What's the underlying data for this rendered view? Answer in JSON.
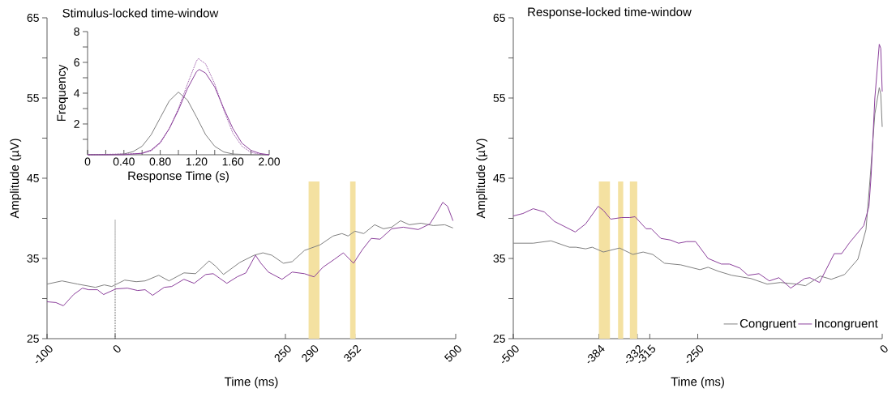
{
  "chart_data": [
    {
      "type": "line",
      "title": "Stimulus-locked time-window",
      "xlabel": "Time (ms)",
      "ylabel": "Amplitude  (µV)",
      "xlim": [
        -100,
        500
      ],
      "ylim": [
        25,
        65
      ],
      "xticks": [
        -100,
        0,
        250,
        290,
        352,
        500
      ],
      "yticks": [
        25,
        {
          "value": 30,
          "label": null
        },
        35,
        {
          "value": 40,
          "label": null
        },
        45,
        {
          "value": 50,
          "label": null
        },
        55,
        {
          "value": 60,
          "label": null
        },
        65
      ],
      "series": [
        {
          "color": "#7f7f7f",
          "x": [
            -100,
            -78,
            -55,
            -29,
            -16,
            -5,
            14,
            31,
            44,
            64,
            79,
            101,
            118,
            138,
            148,
            159,
            183,
            204,
            217,
            230,
            247,
            260,
            278,
            301,
            320,
            333,
            342,
            352,
            365,
            381,
            394,
            406,
            419,
            432,
            449,
            467,
            484,
            496
          ],
          "values": [
            31.8,
            32.2,
            31.8,
            31.4,
            31.7,
            31.5,
            32.3,
            32.1,
            32.2,
            32.9,
            32.2,
            33.2,
            33.1,
            34.7,
            34.0,
            33.0,
            34.5,
            35.4,
            35.7,
            35.4,
            34.4,
            34.6,
            36.0,
            36.7,
            37.8,
            38.1,
            37.8,
            38.4,
            38.1,
            39.2,
            38.7,
            38.9,
            39.7,
            39.2,
            39.4,
            39.1,
            39.2,
            38.8
          ]
        },
        {
          "color": "#8b3f9b",
          "x": [
            -100,
            -87,
            -76,
            -61,
            -48,
            -39,
            -26,
            -17,
            1,
            18,
            33,
            44,
            55,
            72,
            83,
            101,
            116,
            133,
            144,
            164,
            179,
            192,
            206,
            214,
            225,
            245,
            260,
            278,
            292,
            305,
            322,
            335,
            350,
            363,
            376,
            389,
            406,
            423,
            445,
            462,
            473,
            481,
            488,
            496
          ],
          "values": [
            29.6,
            29.5,
            29.1,
            30.5,
            31.3,
            31.1,
            31.1,
            30.5,
            31.2,
            31.3,
            31.0,
            31.1,
            30.4,
            31.4,
            31.5,
            32.4,
            31.9,
            33.0,
            33.1,
            31.9,
            32.7,
            33.2,
            35.4,
            34.4,
            33.3,
            32.4,
            33.3,
            33.1,
            32.7,
            33.9,
            34.9,
            35.7,
            34.4,
            36.1,
            37.5,
            37.4,
            38.7,
            38.9,
            38.6,
            39.3,
            40.8,
            42.0,
            41.5,
            39.7
          ]
        }
      ],
      "bands": [
        {
          "axis": "x",
          "from": 284,
          "to": 300,
          "color": "#f4e1a1"
        },
        {
          "axis": "x",
          "from": 345,
          "to": 353,
          "color": "#f4e1a1"
        }
      ],
      "ref_lines": [
        {
          "axis": "x",
          "value": 0,
          "color": "#555555",
          "line_style": "dotted"
        }
      ]
    },
    {
      "type": "line",
      "xlabel": "Response Time (s)",
      "ylabel": "Frequency",
      "xlim": [
        0,
        2
      ],
      "ylim": [
        0,
        8
      ],
      "xticks": [
        0,
        {
          "value": 0.2,
          "label": null
        },
        {
          "value": 0.4,
          "label": "0.40"
        },
        {
          "value": 0.6,
          "label": null
        },
        {
          "value": 0.8,
          "label": "0.80"
        },
        {
          "value": 1.0,
          "label": null
        },
        {
          "value": 1.2,
          "label": "1.20"
        },
        {
          "value": 1.4,
          "label": null
        },
        {
          "value": 1.6,
          "label": "1.60"
        },
        {
          "value": 1.8,
          "label": null
        },
        {
          "value": 2.0,
          "label": "2.00"
        }
      ],
      "yticks": [
        {
          "value": 1,
          "label": null
        },
        2,
        {
          "value": 3,
          "label": null
        },
        4,
        {
          "value": 5,
          "label": null
        },
        6,
        {
          "value": 7,
          "label": null
        },
        8
      ],
      "series": [
        {
          "color": "#7f7f7f",
          "x": [
            0,
            0.2,
            0.4,
            0.5,
            0.6,
            0.7,
            0.8,
            0.9,
            1.0,
            1.1,
            1.2,
            1.3,
            1.4,
            1.5,
            1.6,
            1.8,
            2.0
          ],
          "values": [
            0,
            0,
            0.05,
            0.2,
            0.55,
            1.3,
            2.4,
            3.5,
            4.07,
            3.55,
            2.45,
            1.3,
            0.55,
            0.18,
            0.05,
            0,
            0
          ]
        },
        {
          "color": "#8b3f9b",
          "x": [
            0,
            0.4,
            0.6,
            0.7,
            0.8,
            0.9,
            1.0,
            1.1,
            1.2,
            1.23,
            1.3,
            1.4,
            1.5,
            1.6,
            1.7,
            1.8,
            1.9,
            2.0
          ],
          "values": [
            0,
            0,
            0.1,
            0.3,
            0.8,
            1.7,
            2.9,
            4.3,
            5.4,
            5.54,
            5.3,
            4.4,
            3.0,
            1.7,
            0.75,
            0.28,
            0.08,
            0
          ]
        },
        {
          "color": "#8b3f9b",
          "line_style": "dotted",
          "x": [
            0,
            0.6,
            0.7,
            0.8,
            0.9,
            1.0,
            1.1,
            1.2,
            1.22,
            1.3,
            1.4,
            1.5,
            1.6,
            1.7,
            1.8,
            1.9,
            2.0
          ],
          "values": [
            0,
            0.08,
            0.25,
            0.75,
            1.7,
            3.0,
            4.6,
            6.1,
            6.25,
            5.9,
            4.6,
            2.9,
            1.4,
            0.55,
            0.15,
            0.03,
            0
          ]
        }
      ]
    },
    {
      "type": "line",
      "title": "Response-locked time-window",
      "xlabel": "Time (ms)",
      "ylabel": "Amplitude  (µV)",
      "xlim": [
        -500,
        0
      ],
      "ylim": [
        25,
        65
      ],
      "xticks": [
        -500,
        -384,
        -332,
        -315,
        -250,
        0
      ],
      "yticks": [
        25,
        {
          "value": 30,
          "label": null
        },
        35,
        {
          "value": 40,
          "label": null
        },
        45,
        {
          "value": 50,
          "label": null
        },
        55,
        {
          "value": 60,
          "label": null
        },
        65
      ],
      "legend": "bottom right",
      "series": [
        {
          "name": "Congruent",
          "color": "#7f7f7f",
          "x": [
            -500,
            -473,
            -449,
            -424,
            -415,
            -402,
            -393,
            -378,
            -356,
            -338,
            -324,
            -311,
            -295,
            -273,
            -247,
            -236,
            -222,
            -204,
            -178,
            -156,
            -138,
            -116,
            -104,
            -84,
            -69,
            -51,
            -33,
            -22,
            -16,
            -10,
            -4,
            -2,
            0
          ],
          "values": [
            36.9,
            36.9,
            37.2,
            36.4,
            36.4,
            36.2,
            36.4,
            35.8,
            36.3,
            35.5,
            35.8,
            35.5,
            34.4,
            34.2,
            33.6,
            33.9,
            33.4,
            32.9,
            32.5,
            31.8,
            32.0,
            31.8,
            31.6,
            32.8,
            32.4,
            33.0,
            34.9,
            38.6,
            45.5,
            53.0,
            56.3,
            55.5,
            51.4
          ]
        },
        {
          "name": "Incongruent",
          "color": "#8b3f9b",
          "x": [
            -500,
            -487,
            -473,
            -458,
            -444,
            -431,
            -416,
            -402,
            -385,
            -378,
            -368,
            -353,
            -342,
            -335,
            -320,
            -313,
            -300,
            -287,
            -276,
            -265,
            -253,
            -236,
            -218,
            -207,
            -193,
            -182,
            -167,
            -153,
            -140,
            -124,
            -105,
            -98,
            -85,
            -65,
            -55,
            -44,
            -25,
            -18,
            -15,
            -10,
            -4,
            -2,
            0
          ],
          "values": [
            40.3,
            40.6,
            41.2,
            40.8,
            39.6,
            39.0,
            38.3,
            39.3,
            41.5,
            41.0,
            39.9,
            40.1,
            40.1,
            40.2,
            38.7,
            38.7,
            37.5,
            37.3,
            36.9,
            37.1,
            37.1,
            35.0,
            34.3,
            34.3,
            33.8,
            32.9,
            33.1,
            32.2,
            32.6,
            31.3,
            32.5,
            32.6,
            32.0,
            35.6,
            35.6,
            37.0,
            39.1,
            41.5,
            45.4,
            55.0,
            61.7,
            61.2,
            55.8
          ]
        }
      ],
      "bands": [
        {
          "axis": "x",
          "from": -384,
          "to": -369,
          "color": "#f4e1a1"
        },
        {
          "axis": "x",
          "from": -358,
          "to": -351,
          "color": "#f4e1a1"
        },
        {
          "axis": "x",
          "from": -342,
          "to": -332,
          "color": "#f4e1a1"
        }
      ]
    }
  ]
}
